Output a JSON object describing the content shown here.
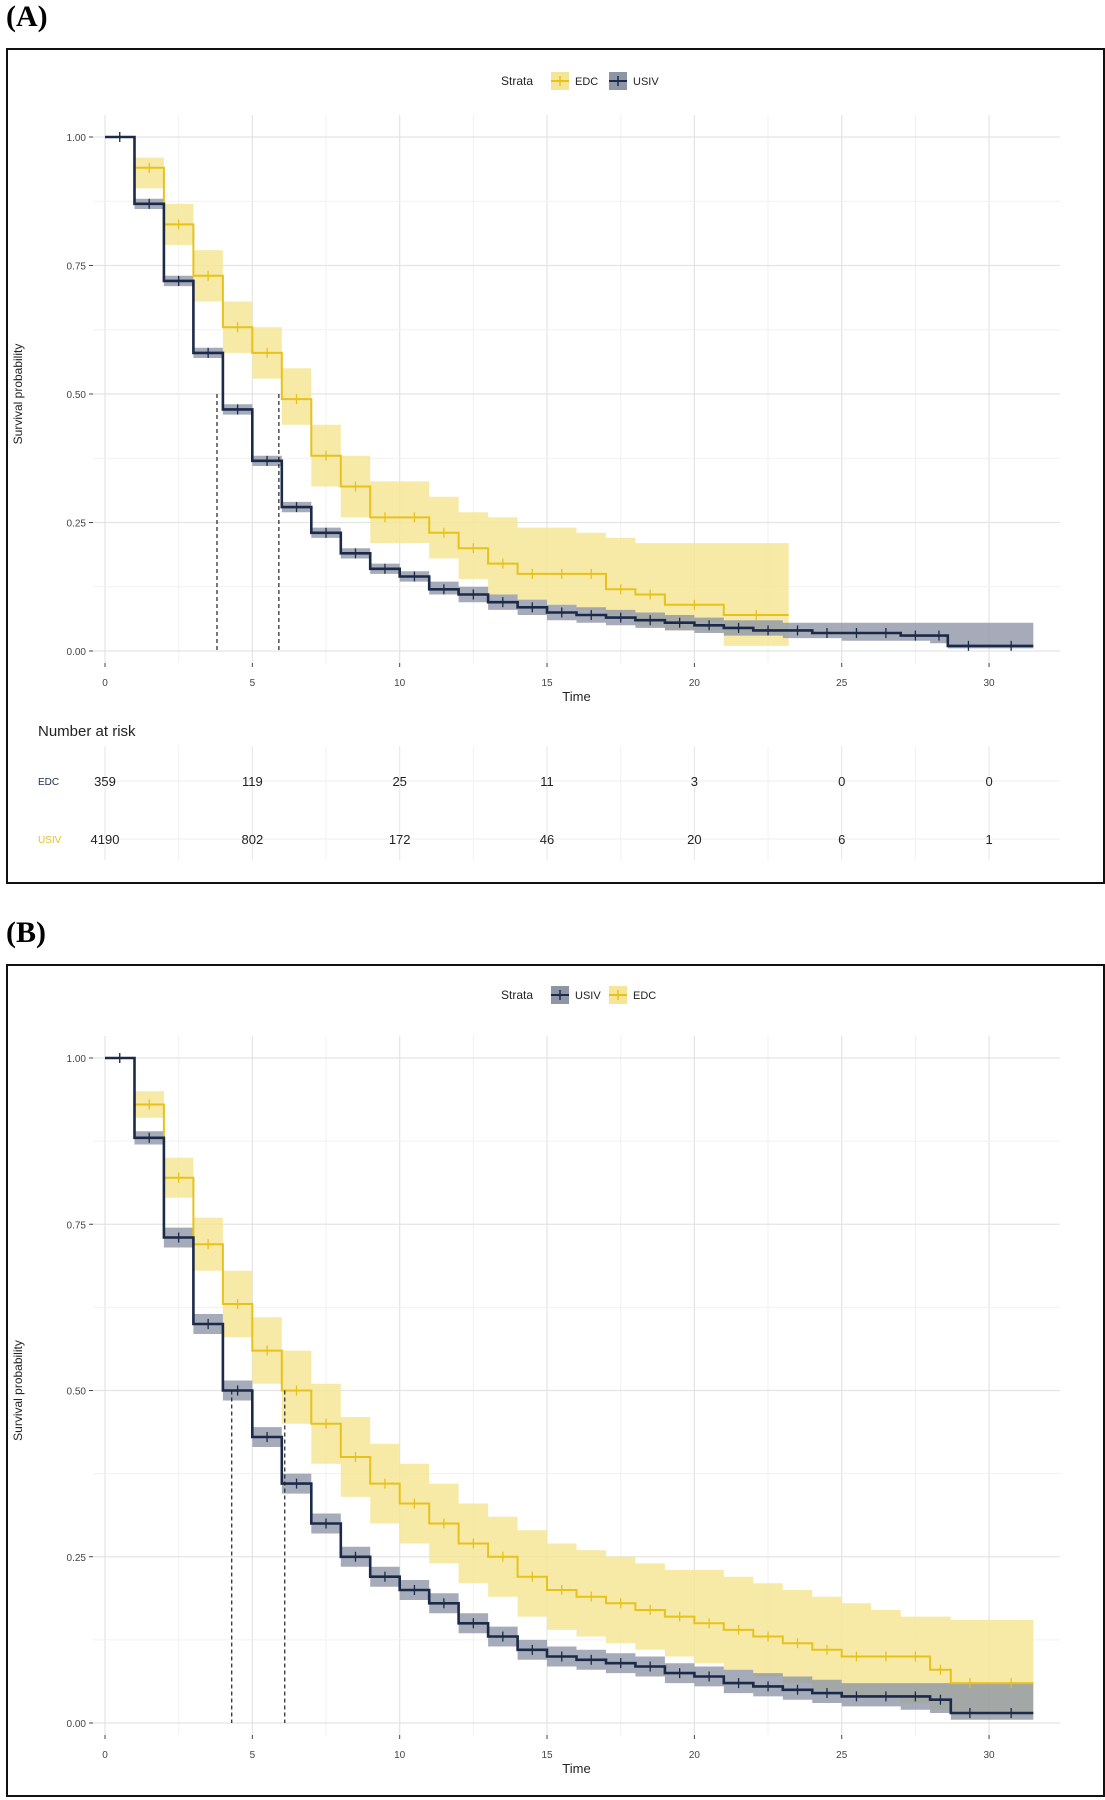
{
  "panels": {
    "a": {
      "label": "(A)"
    },
    "b": {
      "label": "(B)"
    }
  },
  "colors": {
    "edc": "#E7C21C",
    "usiv": "#1C2A4A",
    "edc_band": "#F5E697",
    "usiv_band": "#8E96A6"
  },
  "chart_data": [
    {
      "type": "line",
      "title": "",
      "legend_title": "Strata",
      "legend": [
        "EDC",
        "USIV"
      ],
      "legend_position": "top",
      "xlabel": "Time",
      "ylabel": "Survival probability",
      "xlim": [
        0,
        32
      ],
      "ylim": [
        0,
        1
      ],
      "x_ticks": [
        0,
        5,
        10,
        15,
        20,
        25,
        30
      ],
      "y_ticks": [
        "0.00",
        "0.25",
        "0.50",
        "0.75",
        "1.00"
      ],
      "median_lines": [
        3.8,
        5.9
      ],
      "series": [
        {
          "name": "EDC",
          "x": [
            0,
            1,
            2,
            3,
            4,
            5,
            6,
            7,
            8,
            9,
            10,
            11,
            12,
            13,
            14,
            15,
            16,
            17,
            18,
            19,
            21,
            23.2
          ],
          "y": [
            1.0,
            0.94,
            0.83,
            0.73,
            0.63,
            0.58,
            0.49,
            0.38,
            0.32,
            0.26,
            0.26,
            0.23,
            0.2,
            0.17,
            0.15,
            0.15,
            0.15,
            0.12,
            0.11,
            0.09,
            0.07,
            0.07
          ],
          "upper": [
            1.0,
            0.96,
            0.87,
            0.78,
            0.68,
            0.63,
            0.55,
            0.44,
            0.38,
            0.33,
            0.33,
            0.3,
            0.27,
            0.26,
            0.24,
            0.24,
            0.23,
            0.22,
            0.21,
            0.21,
            0.21,
            0.21
          ],
          "lower": [
            1.0,
            0.9,
            0.79,
            0.68,
            0.58,
            0.53,
            0.44,
            0.32,
            0.26,
            0.21,
            0.21,
            0.18,
            0.14,
            0.11,
            0.1,
            0.09,
            0.08,
            0.07,
            0.05,
            0.04,
            0.01,
            0.01
          ]
        },
        {
          "name": "USIV",
          "x": [
            0,
            1,
            2,
            3,
            4,
            5,
            6,
            7,
            8,
            9,
            10,
            11,
            12,
            13,
            14,
            15,
            16,
            17,
            18,
            19,
            20,
            21,
            22,
            23,
            24,
            25,
            26,
            27,
            28,
            28.6,
            30,
            31.5
          ],
          "y": [
            1.0,
            0.87,
            0.72,
            0.58,
            0.47,
            0.37,
            0.28,
            0.23,
            0.19,
            0.16,
            0.145,
            0.12,
            0.11,
            0.095,
            0.085,
            0.075,
            0.07,
            0.065,
            0.06,
            0.055,
            0.05,
            0.045,
            0.04,
            0.04,
            0.035,
            0.035,
            0.035,
            0.03,
            0.03,
            0.01,
            0.01,
            0.01
          ],
          "upper": [
            1.0,
            0.88,
            0.73,
            0.59,
            0.48,
            0.38,
            0.29,
            0.24,
            0.2,
            0.17,
            0.155,
            0.135,
            0.125,
            0.11,
            0.1,
            0.09,
            0.085,
            0.08,
            0.075,
            0.07,
            0.065,
            0.06,
            0.06,
            0.055,
            0.055,
            0.055,
            0.055,
            0.055,
            0.055,
            0.055,
            0.055,
            0.055
          ],
          "lower": [
            1.0,
            0.86,
            0.71,
            0.57,
            0.46,
            0.36,
            0.27,
            0.22,
            0.18,
            0.15,
            0.135,
            0.11,
            0.095,
            0.08,
            0.07,
            0.06,
            0.055,
            0.05,
            0.045,
            0.04,
            0.035,
            0.03,
            0.03,
            0.025,
            0.025,
            0.02,
            0.02,
            0.02,
            0.015,
            0.005,
            0.005,
            0.005
          ]
        }
      ],
      "risk_table": {
        "title": "Number at risk",
        "rows": [
          {
            "label": "EDC",
            "values": [
              "359",
              "119",
              "25",
              "11",
              "3",
              "0",
              "0"
            ]
          },
          {
            "label": "USIV",
            "values": [
              "4190",
              "802",
              "172",
              "46",
              "20",
              "6",
              "1"
            ]
          }
        ]
      }
    },
    {
      "type": "line",
      "title": "",
      "legend_title": "Strata",
      "legend": [
        "USIV",
        "EDC"
      ],
      "legend_position": "top",
      "xlabel": "Time",
      "ylabel": "Survival probability",
      "xlim": [
        0,
        32
      ],
      "ylim": [
        0,
        1
      ],
      "x_ticks": [
        0,
        5,
        10,
        15,
        20,
        25,
        30
      ],
      "y_ticks": [
        "0.00",
        "0.25",
        "0.50",
        "0.75",
        "1.00"
      ],
      "median_lines": [
        4.3,
        6.1
      ],
      "series": [
        {
          "name": "EDC",
          "x": [
            0,
            1,
            2,
            3,
            4,
            5,
            6,
            7,
            8,
            9,
            10,
            11,
            12,
            13,
            14,
            15,
            16,
            17,
            18,
            19,
            20,
            21,
            22,
            23,
            24,
            25,
            26,
            27,
            28,
            28.7,
            30,
            31.5
          ],
          "y": [
            1.0,
            0.93,
            0.82,
            0.72,
            0.63,
            0.56,
            0.5,
            0.45,
            0.4,
            0.36,
            0.33,
            0.3,
            0.27,
            0.25,
            0.22,
            0.2,
            0.19,
            0.18,
            0.17,
            0.16,
            0.15,
            0.14,
            0.13,
            0.12,
            0.11,
            0.1,
            0.1,
            0.1,
            0.08,
            0.06,
            0.06,
            0.06
          ],
          "upper": [
            1.0,
            0.95,
            0.85,
            0.76,
            0.68,
            0.61,
            0.56,
            0.51,
            0.46,
            0.42,
            0.39,
            0.36,
            0.33,
            0.31,
            0.29,
            0.27,
            0.26,
            0.25,
            0.24,
            0.23,
            0.23,
            0.22,
            0.21,
            0.2,
            0.19,
            0.18,
            0.17,
            0.16,
            0.16,
            0.155,
            0.155,
            0.155
          ],
          "lower": [
            1.0,
            0.91,
            0.79,
            0.68,
            0.58,
            0.51,
            0.45,
            0.39,
            0.34,
            0.3,
            0.27,
            0.24,
            0.21,
            0.19,
            0.16,
            0.14,
            0.13,
            0.12,
            0.11,
            0.1,
            0.09,
            0.08,
            0.07,
            0.06,
            0.05,
            0.04,
            0.04,
            0.03,
            0.02,
            0.01,
            0.01,
            0.01
          ]
        },
        {
          "name": "USIV",
          "x": [
            0,
            1,
            2,
            3,
            4,
            5,
            6,
            7,
            8,
            9,
            10,
            11,
            12,
            13,
            14,
            15,
            16,
            17,
            18,
            19,
            20,
            21,
            22,
            23,
            24,
            25,
            26,
            27,
            28,
            28.7,
            30,
            31.5
          ],
          "y": [
            1.0,
            0.88,
            0.73,
            0.6,
            0.5,
            0.43,
            0.36,
            0.3,
            0.25,
            0.22,
            0.2,
            0.18,
            0.15,
            0.13,
            0.11,
            0.1,
            0.095,
            0.09,
            0.085,
            0.075,
            0.07,
            0.06,
            0.055,
            0.05,
            0.045,
            0.04,
            0.04,
            0.04,
            0.035,
            0.015,
            0.015,
            0.015
          ],
          "upper": [
            1.0,
            0.89,
            0.745,
            0.615,
            0.515,
            0.445,
            0.375,
            0.315,
            0.265,
            0.235,
            0.215,
            0.195,
            0.165,
            0.145,
            0.125,
            0.115,
            0.11,
            0.105,
            0.1,
            0.09,
            0.085,
            0.08,
            0.075,
            0.07,
            0.065,
            0.06,
            0.06,
            0.06,
            0.06,
            0.06,
            0.06,
            0.06
          ],
          "lower": [
            1.0,
            0.87,
            0.715,
            0.585,
            0.485,
            0.415,
            0.345,
            0.285,
            0.235,
            0.205,
            0.185,
            0.165,
            0.135,
            0.115,
            0.095,
            0.085,
            0.08,
            0.075,
            0.07,
            0.06,
            0.055,
            0.045,
            0.04,
            0.035,
            0.03,
            0.025,
            0.025,
            0.02,
            0.015,
            0.005,
            0.005,
            0.005
          ]
        }
      ]
    }
  ]
}
